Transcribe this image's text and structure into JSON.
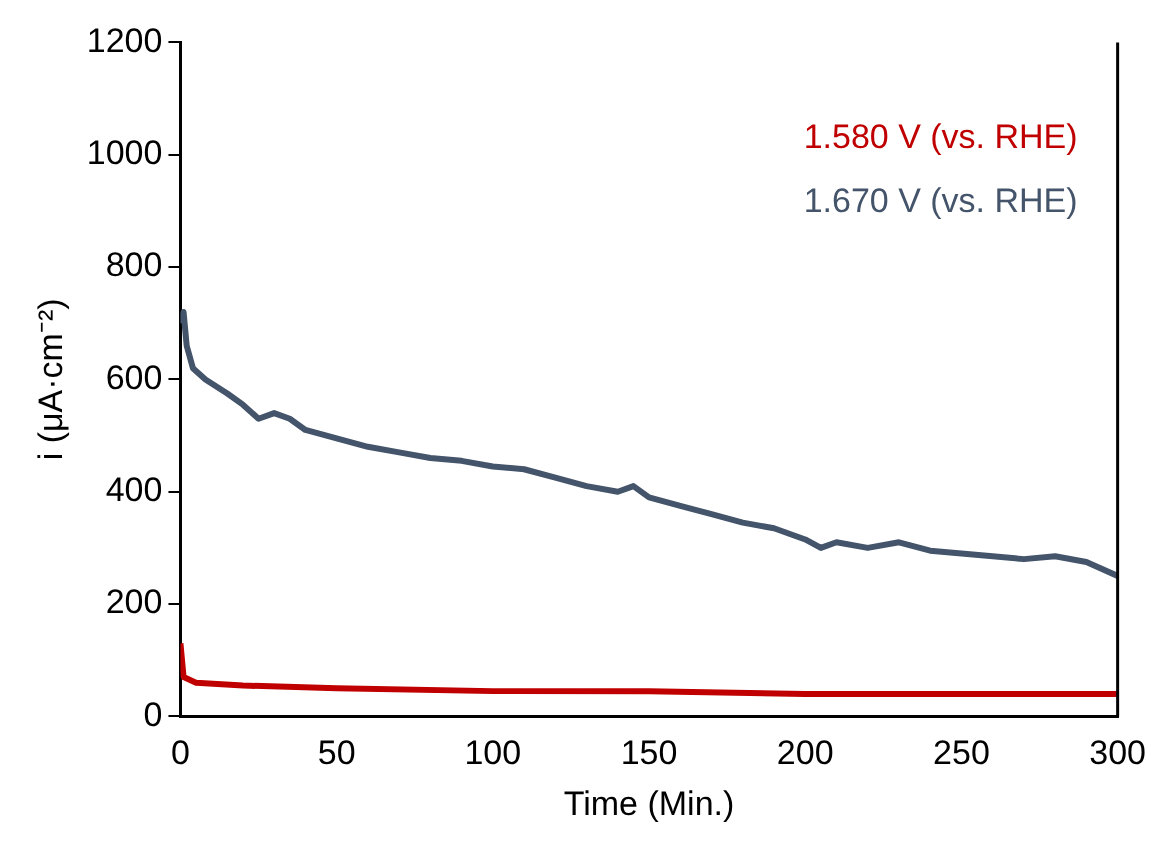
{
  "chart_data": {
    "type": "line",
    "xlabel": "Time (Min.)",
    "ylabel": "i (μA·cm⁻²)",
    "xlim": [
      0,
      300
    ],
    "xticks": [
      0,
      50,
      100,
      150,
      200,
      250,
      300
    ],
    "ylim": [
      0,
      1200
    ],
    "yticks": [
      0,
      200,
      400,
      600,
      800,
      1000,
      1200
    ],
    "grid": false,
    "legend": "top right",
    "marker": "none",
    "line_style": "solid",
    "series": [
      {
        "name": "1.580 V (vs. RHE)",
        "color": "#c00000",
        "x": [
          0,
          1,
          5,
          20,
          50,
          100,
          150,
          200,
          250,
          300
        ],
        "values": [
          130,
          70,
          60,
          55,
          50,
          45,
          45,
          40,
          40,
          40
        ]
      },
      {
        "name": "1.670 V (vs. RHE)",
        "color": "#44546a",
        "x": [
          0,
          1,
          2,
          4,
          8,
          15,
          20,
          25,
          30,
          35,
          40,
          50,
          60,
          70,
          80,
          90,
          100,
          110,
          120,
          130,
          140,
          145,
          150,
          160,
          170,
          180,
          190,
          200,
          205,
          210,
          220,
          230,
          240,
          250,
          260,
          270,
          280,
          290,
          300
        ],
        "values": [
          700,
          720,
          660,
          620,
          600,
          575,
          555,
          530,
          540,
          530,
          510,
          495,
          480,
          470,
          460,
          455,
          445,
          440,
          425,
          410,
          400,
          410,
          390,
          375,
          360,
          345,
          335,
          315,
          300,
          310,
          300,
          310,
          295,
          290,
          285,
          280,
          285,
          275,
          250
        ]
      }
    ]
  }
}
